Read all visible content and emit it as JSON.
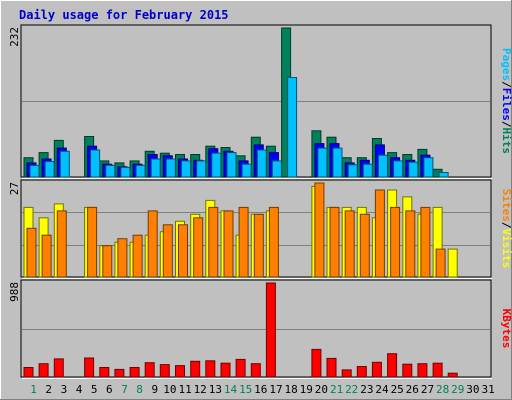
{
  "chart_data": {
    "type": "bar",
    "title": "Daily usage for February 2015",
    "days": [
      "1",
      "2",
      "3",
      "4",
      "5",
      "6",
      "7",
      "8",
      "9",
      "10",
      "11",
      "12",
      "13",
      "14",
      "15",
      "16",
      "17",
      "18",
      "19",
      "20",
      "21",
      "22",
      "23",
      "24",
      "25",
      "26",
      "27",
      "28",
      "29",
      "30",
      "31"
    ],
    "weekend_days": [
      "1",
      "7",
      "8",
      "14",
      "15",
      "21",
      "22",
      "28",
      "29"
    ],
    "colors": {
      "hits": "#00805c",
      "files": "#0000ff",
      "pages": "#00c0ff",
      "visits": "#ffff00",
      "sites": "#ff8000",
      "kbytes": "#ff0000",
      "weekend_label": "#00805c",
      "weekday_label": "#000000"
    },
    "panels": [
      {
        "id": "hits-files-pages",
        "ymax_label": "232",
        "ymax": 232,
        "series": [
          {
            "key": "hits",
            "values": [
              30,
              38,
              57,
              0,
              63,
              25,
              22,
              25,
              40,
              37,
              35,
              35,
              48,
              46,
              33,
              62,
              48,
              232,
              0,
              72,
              62,
              30,
              30,
              60,
              38,
              35,
              43,
              12,
              0,
              0,
              0
            ]
          },
          {
            "key": "files",
            "values": [
              22,
              28,
              45,
              0,
              48,
              20,
              16,
              20,
              35,
              33,
              28,
              26,
              44,
              40,
              25,
              50,
              38,
              0,
              0,
              52,
              52,
              22,
              26,
              50,
              30,
              26,
              34,
              0,
              0,
              0,
              0
            ]
          },
          {
            "key": "pages",
            "values": [
              18,
              24,
              40,
              0,
              42,
              18,
              15,
              18,
              28,
              28,
              25,
              25,
              37,
              38,
              20,
              42,
              25,
              155,
              0,
              45,
              45,
              19,
              20,
              34,
              25,
              23,
              30,
              7,
              0,
              0,
              0
            ]
          }
        ],
        "legend": [
          {
            "key": "pages",
            "text": "Pages"
          },
          {
            "key": "sep",
            "text": "/"
          },
          {
            "key": "files",
            "text": "Files"
          },
          {
            "key": "sep",
            "text": "/"
          },
          {
            "key": "hits",
            "text": "Hits"
          }
        ]
      },
      {
        "id": "visits-sites",
        "ymax_label": "27",
        "ymax": 27,
        "series": [
          {
            "key": "visits",
            "values": [
              20,
              17,
              21,
              0,
              20,
              9,
              10,
              10,
              12,
              13,
              16,
              18,
              22,
              19,
              12,
              18,
              19,
              0,
              0,
              26,
              20,
              20,
              20,
              17,
              25,
              23,
              18,
              20,
              8,
              0,
              0
            ]
          },
          {
            "key": "sites",
            "values": [
              14,
              12,
              19,
              0,
              20,
              9,
              11,
              12,
              19,
              15,
              15,
              17,
              20,
              19,
              20,
              18,
              20,
              0,
              0,
              27,
              20,
              19,
              18,
              25,
              20,
              19,
              20,
              8,
              0,
              0,
              0
            ]
          }
        ],
        "legend": [
          {
            "key": "sites",
            "text": "Sites"
          },
          {
            "key": "sep",
            "text": "/"
          },
          {
            "key": "visits",
            "text": "Visits"
          }
        ]
      },
      {
        "id": "kbytes",
        "ymax_label": "988",
        "ymax": 988,
        "series": [
          {
            "key": "kbytes",
            "values": [
              100,
              140,
              190,
              0,
              200,
              100,
              80,
              100,
              150,
              130,
              120,
              165,
              170,
              145,
              185,
              140,
              988,
              0,
              0,
              290,
              195,
              75,
              110,
              155,
              245,
              135,
              140,
              145,
              40,
              0,
              0
            ]
          }
        ],
        "legend": [
          {
            "key": "kbytes",
            "text": "KBytes"
          }
        ]
      }
    ]
  }
}
